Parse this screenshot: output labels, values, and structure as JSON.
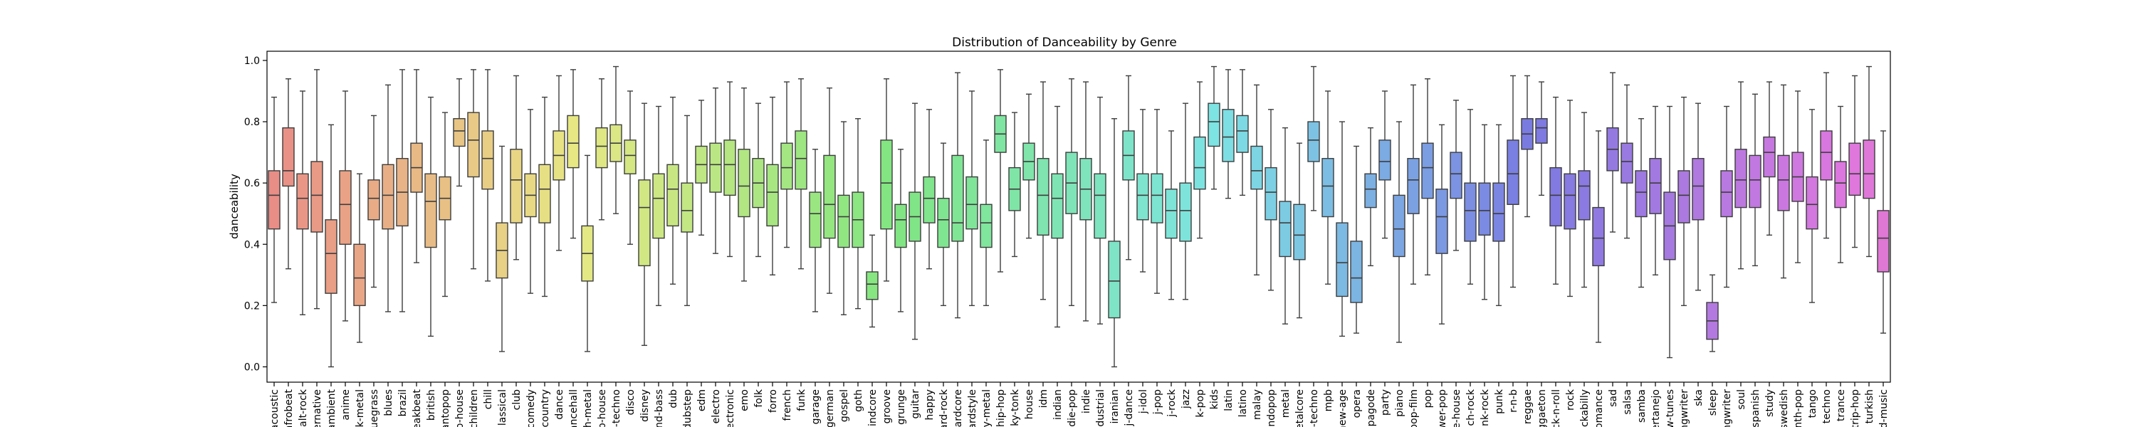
{
  "chart_data": {
    "type": "box",
    "title": "Distribution of Danceability by Genre",
    "xlabel": "",
    "ylabel": "danceability",
    "ylim": [
      -0.05,
      1.03
    ],
    "yticks": [
      0.0,
      0.2,
      0.4,
      0.6,
      0.8,
      1.0
    ],
    "ytick_labels": [
      "0.0",
      "0.2",
      "0.4",
      "0.6",
      "0.8",
      "1.0"
    ],
    "grid": false,
    "legend": "none",
    "categories": [
      "acoustic",
      "afrobeat",
      "alt-rock",
      "alternative",
      "ambient",
      "anime",
      "black-metal",
      "bluegrass",
      "blues",
      "brazil",
      "breakbeat",
      "british",
      "cantopop",
      "chicago-house",
      "children",
      "chill",
      "classical",
      "club",
      "comedy",
      "country",
      "dance",
      "dancehall",
      "death-metal",
      "deep-house",
      "detroit-techno",
      "disco",
      "disney",
      "drum-and-bass",
      "dub",
      "dubstep",
      "edm",
      "electro",
      "electronic",
      "emo",
      "folk",
      "forro",
      "french",
      "funk",
      "garage",
      "german",
      "gospel",
      "goth",
      "grindcore",
      "groove",
      "grunge",
      "guitar",
      "happy",
      "hard-rock",
      "hardcore",
      "hardstyle",
      "heavy-metal",
      "hip-hop",
      "honky-tonk",
      "house",
      "idm",
      "indian",
      "indie-pop",
      "indie",
      "industrial",
      "iranian",
      "j-dance",
      "j-idol",
      "j-pop",
      "j-rock",
      "jazz",
      "k-pop",
      "kids",
      "latin",
      "latino",
      "malay",
      "mandopop",
      "metal",
      "metalcore",
      "minimal-techno",
      "mpb",
      "new-age",
      "opera",
      "pagode",
      "party",
      "piano",
      "pop-film",
      "pop",
      "power-pop",
      "progressive-house",
      "psych-rock",
      "punk-rock",
      "punk",
      "r-n-b",
      "reggae",
      "reggaeton",
      "rock-n-roll",
      "rock",
      "rockabilly",
      "romance",
      "sad",
      "salsa",
      "samba",
      "sertanejo",
      "show-tunes",
      "singer-songwriter",
      "ska",
      "sleep",
      "songwriter",
      "soul",
      "spanish",
      "study",
      "swedish",
      "synth-pop",
      "tango",
      "techno",
      "trance",
      "trip-hop",
      "turkish",
      "world-music"
    ],
    "tick_labels": [
      "acoustic",
      "afrobeat",
      "alt-rock",
      "ernative",
      "ambient",
      "anime",
      "k-metal",
      "uegrass",
      "blues",
      "brazil",
      "eakbeat",
      "british",
      "antopop",
      "o-house",
      "children",
      "chill",
      "lassical",
      "club",
      "comedy",
      "country",
      "dance",
      "ancehall",
      "h-metal",
      "p-house",
      "t-techno",
      "disco",
      "disney",
      "nd-bass",
      "dub",
      "dubstep",
      "edm",
      "electro",
      "ectronic",
      "emo",
      "folk",
      "forro",
      "french",
      "funk",
      "garage",
      "german",
      "gospel",
      "goth",
      "indcore",
      "groove",
      "grunge",
      "guitar",
      "happy",
      "ard-rock",
      "ardcore",
      "ardstyle",
      "y-metal",
      "hip-hop",
      "ky-tonk",
      "house",
      "idm",
      "indian",
      "die-pop",
      "indie",
      "dustrial",
      "iranian",
      "j-dance",
      "j-idol",
      "j-pop",
      "j-rock",
      "jazz",
      "k-pop",
      "kids",
      "latin",
      "latino",
      "malay",
      "ndopop",
      "metal",
      "etalcore",
      "l-techno",
      "mpb",
      "new-age",
      "opera",
      "pagode",
      "party",
      "piano",
      "pop-film",
      "pop",
      "wer-pop",
      "e-house",
      "ch-rock",
      "nk-rock",
      "punk",
      "r-n-b",
      "reggae",
      "ggaeton",
      "ck-n-roll",
      "rock",
      "ckabilly",
      "omance",
      "sad",
      "salsa",
      "samba",
      "ertanejo",
      "w-tunes",
      "ngwriter",
      "ska",
      "sleep",
      "ngwriter",
      "soul",
      "spanish",
      "study",
      "swedish",
      "nth-pop",
      "tango",
      "techno",
      "trance",
      "trip-hop",
      "turkish",
      "d-music"
    ],
    "box_stats": [
      [
        0.21,
        0.45,
        0.56,
        0.64,
        0.88
      ],
      [
        0.32,
        0.59,
        0.64,
        0.78,
        0.94
      ],
      [
        0.17,
        0.45,
        0.55,
        0.63,
        0.9
      ],
      [
        0.19,
        0.44,
        0.56,
        0.67,
        0.97
      ],
      [
        0.0,
        0.24,
        0.37,
        0.48,
        0.79
      ],
      [
        0.15,
        0.4,
        0.53,
        0.64,
        0.9
      ],
      [
        0.08,
        0.2,
        0.29,
        0.4,
        0.63
      ],
      [
        0.26,
        0.48,
        0.55,
        0.61,
        0.82
      ],
      [
        0.18,
        0.45,
        0.56,
        0.66,
        0.92
      ],
      [
        0.18,
        0.46,
        0.57,
        0.68,
        0.97
      ],
      [
        0.34,
        0.57,
        0.65,
        0.73,
        0.97
      ],
      [
        0.1,
        0.39,
        0.54,
        0.63,
        0.88
      ],
      [
        0.23,
        0.48,
        0.55,
        0.62,
        0.83
      ],
      [
        0.59,
        0.72,
        0.77,
        0.81,
        0.94
      ],
      [
        0.32,
        0.62,
        0.74,
        0.83,
        0.97
      ],
      [
        0.28,
        0.58,
        0.68,
        0.77,
        0.97
      ],
      [
        0.05,
        0.29,
        0.38,
        0.47,
        0.72
      ],
      [
        0.35,
        0.47,
        0.61,
        0.71,
        0.95
      ],
      [
        0.24,
        0.49,
        0.56,
        0.63,
        0.84
      ],
      [
        0.23,
        0.47,
        0.58,
        0.66,
        0.88
      ],
      [
        0.38,
        0.61,
        0.69,
        0.77,
        0.95
      ],
      [
        0.42,
        0.65,
        0.73,
        0.82,
        0.97
      ],
      [
        0.05,
        0.28,
        0.37,
        0.46,
        0.69
      ],
      [
        0.48,
        0.65,
        0.72,
        0.78,
        0.94
      ],
      [
        0.5,
        0.67,
        0.73,
        0.79,
        0.98
      ],
      [
        0.4,
        0.63,
        0.69,
        0.74,
        0.9
      ],
      [
        0.07,
        0.33,
        0.52,
        0.61,
        0.86
      ],
      [
        0.2,
        0.42,
        0.55,
        0.63,
        0.85
      ],
      [
        0.27,
        0.46,
        0.58,
        0.66,
        0.88
      ],
      [
        0.2,
        0.44,
        0.51,
        0.6,
        0.82
      ],
      [
        0.43,
        0.6,
        0.66,
        0.72,
        0.87
      ],
      [
        0.37,
        0.57,
        0.66,
        0.73,
        0.91
      ],
      [
        0.36,
        0.56,
        0.66,
        0.74,
        0.93
      ],
      [
        0.28,
        0.49,
        0.59,
        0.71,
        0.91
      ],
      [
        0.36,
        0.52,
        0.6,
        0.68,
        0.86
      ],
      [
        0.3,
        0.46,
        0.57,
        0.66,
        0.88
      ],
      [
        0.39,
        0.58,
        0.65,
        0.73,
        0.93
      ],
      [
        0.32,
        0.58,
        0.68,
        0.77,
        0.94
      ],
      [
        0.18,
        0.39,
        0.5,
        0.57,
        0.71
      ],
      [
        0.24,
        0.42,
        0.53,
        0.69,
        0.91
      ],
      [
        0.17,
        0.39,
        0.49,
        0.56,
        0.8
      ],
      [
        0.19,
        0.39,
        0.48,
        0.57,
        0.81
      ],
      [
        0.13,
        0.22,
        0.27,
        0.31,
        0.43
      ],
      [
        0.28,
        0.45,
        0.6,
        0.74,
        0.94
      ],
      [
        0.18,
        0.39,
        0.48,
        0.53,
        0.71
      ],
      [
        0.09,
        0.41,
        0.49,
        0.57,
        0.86
      ],
      [
        0.32,
        0.47,
        0.55,
        0.62,
        0.84
      ],
      [
        0.2,
        0.39,
        0.48,
        0.55,
        0.73
      ],
      [
        0.16,
        0.41,
        0.47,
        0.69,
        0.96
      ],
      [
        0.2,
        0.45,
        0.53,
        0.62,
        0.9
      ],
      [
        0.2,
        0.39,
        0.47,
        0.53,
        0.74
      ],
      [
        0.31,
        0.7,
        0.76,
        0.82,
        0.97
      ],
      [
        0.36,
        0.51,
        0.58,
        0.65,
        0.83
      ],
      [
        0.42,
        0.61,
        0.67,
        0.73,
        0.89
      ],
      [
        0.22,
        0.43,
        0.56,
        0.68,
        0.93
      ],
      [
        0.13,
        0.42,
        0.55,
        0.63,
        0.85
      ],
      [
        0.2,
        0.5,
        0.6,
        0.7,
        0.94
      ],
      [
        0.15,
        0.48,
        0.58,
        0.68,
        0.93
      ],
      [
        0.14,
        0.42,
        0.56,
        0.63,
        0.88
      ],
      [
        0.0,
        0.16,
        0.28,
        0.41,
        0.81
      ],
      [
        0.35,
        0.61,
        0.69,
        0.77,
        0.95
      ],
      [
        0.31,
        0.48,
        0.56,
        0.63,
        0.84
      ],
      [
        0.24,
        0.47,
        0.56,
        0.63,
        0.84
      ],
      [
        0.22,
        0.42,
        0.51,
        0.58,
        0.77
      ],
      [
        0.22,
        0.41,
        0.51,
        0.6,
        0.86
      ],
      [
        0.42,
        0.58,
        0.65,
        0.75,
        0.93
      ],
      [
        0.58,
        0.72,
        0.8,
        0.86,
        0.98
      ],
      [
        0.55,
        0.67,
        0.75,
        0.84,
        0.97
      ],
      [
        0.56,
        0.7,
        0.77,
        0.82,
        0.97
      ],
      [
        0.3,
        0.58,
        0.64,
        0.72,
        0.92
      ],
      [
        0.25,
        0.48,
        0.57,
        0.65,
        0.84
      ],
      [
        0.14,
        0.36,
        0.47,
        0.54,
        0.78
      ],
      [
        0.16,
        0.35,
        0.43,
        0.53,
        0.73
      ],
      [
        0.51,
        0.67,
        0.74,
        0.8,
        0.98
      ],
      [
        0.27,
        0.49,
        0.59,
        0.68,
        0.9
      ],
      [
        0.1,
        0.23,
        0.34,
        0.47,
        0.8
      ],
      [
        0.11,
        0.21,
        0.29,
        0.41,
        0.72
      ],
      [
        0.33,
        0.52,
        0.58,
        0.63,
        0.78
      ],
      [
        0.42,
        0.61,
        0.67,
        0.74,
        0.9
      ],
      [
        0.08,
        0.36,
        0.45,
        0.56,
        0.8
      ],
      [
        0.27,
        0.5,
        0.61,
        0.68,
        0.92
      ],
      [
        0.3,
        0.55,
        0.65,
        0.73,
        0.94
      ],
      [
        0.14,
        0.37,
        0.49,
        0.58,
        0.79
      ],
      [
        0.38,
        0.55,
        0.63,
        0.7,
        0.87
      ],
      [
        0.27,
        0.41,
        0.51,
        0.6,
        0.84
      ],
      [
        0.22,
        0.43,
        0.51,
        0.6,
        0.79
      ],
      [
        0.2,
        0.41,
        0.5,
        0.6,
        0.79
      ],
      [
        0.26,
        0.53,
        0.63,
        0.74,
        0.95
      ],
      [
        0.49,
        0.71,
        0.76,
        0.81,
        0.95
      ],
      [
        0.56,
        0.73,
        0.78,
        0.81,
        0.93
      ],
      [
        0.27,
        0.46,
        0.56,
        0.65,
        0.88
      ],
      [
        0.23,
        0.45,
        0.56,
        0.63,
        0.87
      ],
      [
        0.26,
        0.48,
        0.59,
        0.64,
        0.83
      ],
      [
        0.08,
        0.33,
        0.42,
        0.52,
        0.77
      ],
      [
        0.44,
        0.64,
        0.71,
        0.78,
        0.96
      ],
      [
        0.42,
        0.6,
        0.67,
        0.73,
        0.92
      ],
      [
        0.26,
        0.49,
        0.57,
        0.64,
        0.81
      ],
      [
        0.3,
        0.5,
        0.6,
        0.68,
        0.85
      ],
      [
        0.03,
        0.35,
        0.46,
        0.57,
        0.85
      ],
      [
        0.2,
        0.47,
        0.56,
        0.64,
        0.88
      ],
      [
        0.25,
        0.48,
        0.59,
        0.68,
        0.86
      ],
      [
        0.05,
        0.09,
        0.15,
        0.21,
        0.3
      ],
      [
        0.26,
        0.49,
        0.57,
        0.64,
        0.85
      ],
      [
        0.32,
        0.52,
        0.61,
        0.71,
        0.93
      ],
      [
        0.33,
        0.52,
        0.61,
        0.69,
        0.89
      ],
      [
        0.43,
        0.62,
        0.7,
        0.75,
        0.93
      ],
      [
        0.29,
        0.51,
        0.61,
        0.69,
        0.92
      ],
      [
        0.34,
        0.54,
        0.62,
        0.7,
        0.9
      ],
      [
        0.21,
        0.45,
        0.53,
        0.62,
        0.84
      ],
      [
        0.42,
        0.61,
        0.7,
        0.77,
        0.96
      ],
      [
        0.34,
        0.52,
        0.6,
        0.67,
        0.85
      ],
      [
        0.39,
        0.56,
        0.63,
        0.73,
        0.95
      ],
      [
        0.36,
        0.55,
        0.63,
        0.74,
        0.98
      ],
      [
        0.11,
        0.31,
        0.42,
        0.51,
        0.77
      ]
    ],
    "colors": {
      "start": "#e98d87",
      "mid": "#89a532",
      "end": "#df77d4",
      "text": "#000000",
      "line": "#3d3d3d"
    }
  }
}
